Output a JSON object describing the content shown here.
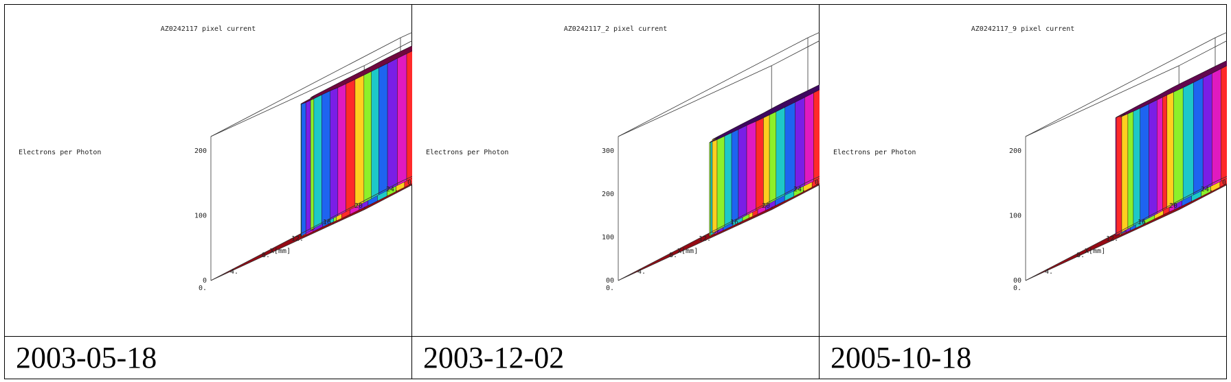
{
  "chart_data": [
    {
      "type": "surface3d",
      "title": "AZ0242117 pixel current",
      "zlabel": "Electrons per Photon",
      "xlabel": "X[mm]",
      "ylabel": "Y[mm]",
      "x_ticks": [
        "0.",
        "4.",
        "8.",
        "12.",
        "16.",
        "20.",
        "24."
      ],
      "y_ticks": [
        "0.",
        "4.",
        "8.",
        "12.",
        "16.",
        "20.",
        "24."
      ],
      "z_ticks": [
        "0",
        "100",
        "200"
      ],
      "zlim": [
        0,
        250
      ],
      "plateau_level": 230,
      "top_colormap": [
        "#ff1a40",
        "#e11a9a"
      ],
      "date": "2003-05-18"
    },
    {
      "type": "surface3d",
      "title": "AZ0242117_2 pixel current",
      "zlabel": "Electrons per Photon",
      "xlabel": "X[mm]",
      "ylabel": "Y[mm]",
      "x_ticks": [
        "0.",
        "4.",
        "8.",
        "12.",
        "16.",
        "20.",
        "24."
      ],
      "y_ticks": [
        "0.",
        "4.",
        "8.",
        "12.",
        "16.",
        "20.",
        "24."
      ],
      "z_ticks": [
        "00",
        "100",
        "200",
        "300"
      ],
      "zlim": [
        0,
        400
      ],
      "plateau_level": 260,
      "top_colormap": [
        "#2a1ad6",
        "#b21ab8"
      ],
      "date": "2003-12-02"
    },
    {
      "type": "surface3d",
      "title": "AZ0242117_9 pixel current",
      "zlabel": "Electrons per Photon",
      "xlabel": "X[mm]",
      "ylabel": "Y[mm]",
      "x_ticks": [
        "0.",
        "4.",
        "8.",
        "12.",
        "16.",
        "20.",
        "24."
      ],
      "y_ticks": [
        "0.",
        "4.",
        "8.",
        "12.",
        "16.",
        "20.",
        "24."
      ],
      "z_ticks": [
        "00",
        "100",
        "200"
      ],
      "zlim": [
        0,
        330
      ],
      "plateau_level": 270,
      "top_colormap": [
        "#e0186a",
        "#c01ac8"
      ],
      "date": "2005-10-18"
    }
  ]
}
